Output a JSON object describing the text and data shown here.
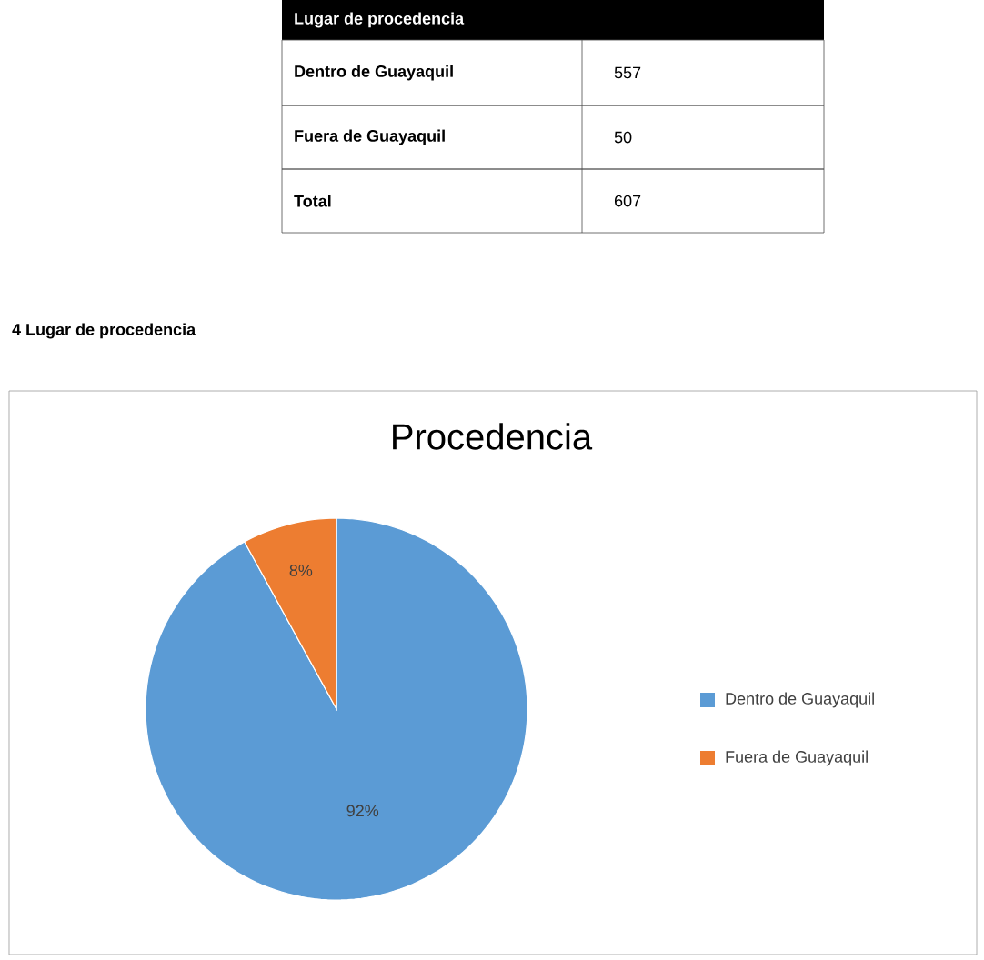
{
  "chart_data": {
    "type": "pie",
    "title": "Procedencia",
    "categories": [
      "Dentro de Guayaquil",
      "Fuera de  Guayaquil"
    ],
    "values": [
      92,
      8
    ],
    "value_labels": [
      "92%",
      "8%"
    ],
    "colors": [
      "#5b9bd5",
      "#ed7d31"
    ],
    "legend": "right",
    "annotations": [
      "Lugar de procedencia",
      "Dentro de Guayaquil",
      "557",
      "Fuera de  Guayaquil",
      "50",
      "Total",
      "607",
      "4  Lugar de procedencia"
    ]
  }
}
